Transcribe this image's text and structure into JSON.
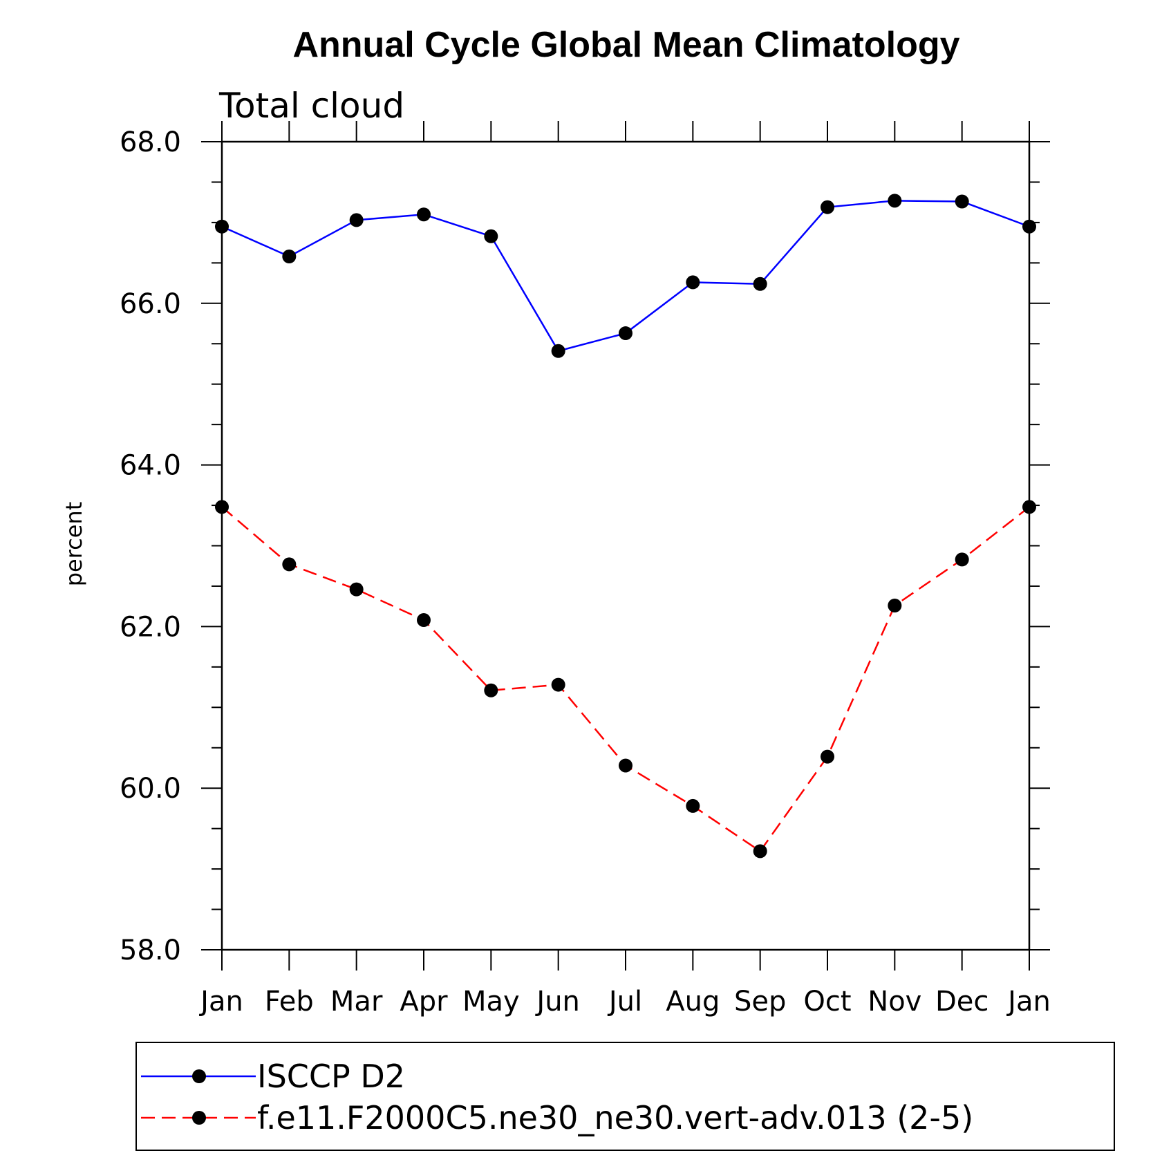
{
  "chart_data": {
    "type": "line",
    "title": "Annual Cycle Global Mean Climatology",
    "subtitle": "Total cloud",
    "xlabel": "",
    "ylabel": "percent",
    "categories": [
      "Jan",
      "Feb",
      "Mar",
      "Apr",
      "May",
      "Jun",
      "Jul",
      "Aug",
      "Sep",
      "Oct",
      "Nov",
      "Dec",
      "Jan"
    ],
    "ylim": [
      58.0,
      68.0
    ],
    "yticks": [
      "58.0",
      "60.0",
      "62.0",
      "64.0",
      "66.0",
      "68.0"
    ],
    "ytick_values": [
      58.0,
      60.0,
      62.0,
      64.0,
      66.0,
      68.0
    ],
    "grid": false,
    "legend_position": "bottom",
    "series": [
      {
        "name": "ISCCP D2",
        "color": "#0000ff",
        "line_style": "solid",
        "marker": "filled-circle",
        "values": [
          66.95,
          66.58,
          67.03,
          67.1,
          66.83,
          65.41,
          65.63,
          66.26,
          66.24,
          67.19,
          67.27,
          67.26,
          66.95
        ]
      },
      {
        "name": "f.e11.F2000C5.ne30_ne30.vert-adv.013 (2-5)",
        "color": "#ff0000",
        "line_style": "dashed",
        "marker": "filled-circle",
        "values": [
          63.48,
          62.77,
          62.46,
          62.08,
          61.21,
          61.28,
          60.28,
          59.78,
          59.22,
          60.39,
          62.26,
          62.83,
          63.48
        ]
      }
    ]
  }
}
